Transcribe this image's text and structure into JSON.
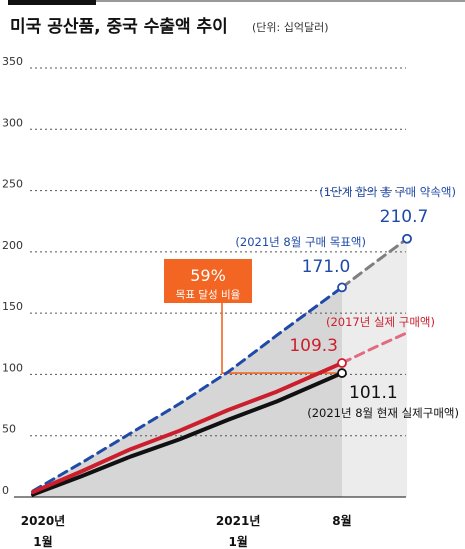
{
  "chart_data": {
    "type": "line",
    "title": "미국 공산품, 중국 수출액 추이",
    "subtitle": "(단위: 십억달러)",
    "ylim": [
      0,
      350
    ],
    "yticks": [
      0,
      50,
      100,
      150,
      200,
      250,
      300,
      350
    ],
    "x_ticks": [
      {
        "t": 0,
        "line1": "2020년",
        "line2": "1월"
      },
      {
        "t": 12,
        "line1": "2021년",
        "line2": "1월"
      },
      {
        "t": 19,
        "line1": "8월",
        "line2": ""
      }
    ],
    "x_range": [
      0,
      23
    ],
    "grid": true,
    "series": [
      {
        "name": "2021년 8월 현재 실제구매액",
        "color": "#111111",
        "style": "solid",
        "x": [
          0,
          3,
          6,
          9,
          12,
          15,
          19
        ],
        "y": [
          2,
          17,
          33,
          47,
          63,
          78,
          101.1
        ]
      },
      {
        "name": "2017년 실제 구매액",
        "color": "#cc1f2d",
        "style": "solid",
        "x": [
          0,
          3,
          6,
          9,
          12,
          15,
          19
        ],
        "y": [
          4,
          21,
          39,
          54,
          71,
          86,
          109.3
        ]
      },
      {
        "name": "2017년 실제 구매액 (추세)",
        "color": "#e26b7f",
        "style": "dashed",
        "x": [
          19,
          21,
          23
        ],
        "y": [
          109.3,
          122,
          134
        ]
      },
      {
        "name": "1단계 합의 총 구매 약속액",
        "color": "#1f4aa8",
        "style": "dashed",
        "x": [
          0,
          3,
          6,
          9,
          12,
          15,
          19
        ],
        "y": [
          5,
          28,
          52,
          76,
          102,
          132,
          171.0
        ]
      },
      {
        "name": "1단계 합의 총 구매 약속액 (추세)",
        "color": "#7f7f7f",
        "style": "dashed",
        "x": [
          19,
          21,
          23
        ],
        "y": [
          171.0,
          191,
          210.7
        ]
      }
    ],
    "annotations": {
      "promise_label": "(1단계 합의 총 구매 약속액)",
      "promise_value": "210.7",
      "target_label": "(2021년 8월 구매 목표액)",
      "target_value": "171.0",
      "red_label": "(2017년 실제 구매액)",
      "red_value": "109.3",
      "black_value": "101.1",
      "black_label": "(2021년 8월 현재 실제구매액)",
      "ratio_value": "59%",
      "ratio_label": "목표 달성 비율"
    },
    "colors": {
      "blue": "#1f4aa8",
      "red": "#cc1f2d",
      "black": "#111111",
      "orange": "#f26522",
      "fill": "#d6d6d6",
      "fill_future": "#ececec"
    }
  }
}
